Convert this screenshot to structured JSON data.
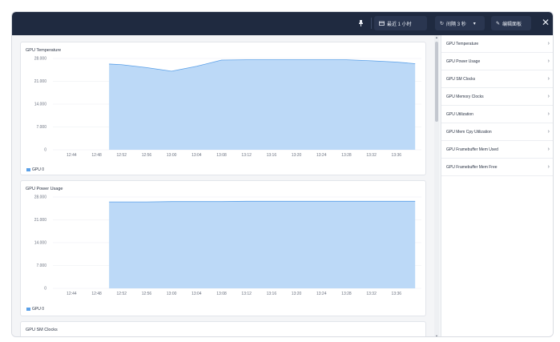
{
  "toolbar": {
    "pin_icon": "pin-icon",
    "time_range": "最近 1 小时",
    "refresh": "间隔 3 秒",
    "edit_label": "编辑面板"
  },
  "panels": [
    {
      "title": "GPU Temperature",
      "legend": "GPU 0"
    },
    {
      "title": "GPU Power Usage",
      "legend": "GPU 0"
    },
    {
      "title": "GPU SM Clocks"
    }
  ],
  "sidebar": {
    "items": [
      {
        "label": "GPU Temperature"
      },
      {
        "label": "GPU Power Usage"
      },
      {
        "label": "GPU SM Clocks"
      },
      {
        "label": "GPU Memory Clocks"
      },
      {
        "label": "GPU Utilization"
      },
      {
        "label": "GPU Mem Cpy Utilization"
      },
      {
        "label": "GPU Framebuffer Mem Used"
      },
      {
        "label": "GPU Framebuffer Mem Free"
      }
    ]
  },
  "colors": {
    "topbar": "#1f2a40",
    "series_fill": "#bcd9f7",
    "series_line": "#5aa0e8"
  },
  "chart_data": [
    {
      "type": "area",
      "title": "GPU Temperature",
      "x": [
        "12:50",
        "12:52",
        "12:56",
        "13:00",
        "13:04",
        "13:08",
        "13:12",
        "13:16",
        "13:20",
        "13:24",
        "13:28",
        "13:32",
        "13:36",
        "13:39"
      ],
      "x_tick_labels": [
        "12:44",
        "12:48",
        "12:52",
        "12:56",
        "13:00",
        "13:04",
        "13:08",
        "13:12",
        "13:16",
        "13:20",
        "13:24",
        "13:28",
        "13:32",
        "13:36"
      ],
      "y_tick_labels": [
        "0",
        "7.000",
        "14.000",
        "21.000",
        "28.000"
      ],
      "series": [
        {
          "name": "GPU 0",
          "values": [
            26300,
            26100,
            25200,
            24100,
            25600,
            27500,
            27600,
            27600,
            27600,
            27600,
            27600,
            27300,
            26900,
            26400
          ]
        }
      ],
      "ylim": [
        0,
        28000
      ],
      "xlim": [
        "12:41",
        "13:40"
      ],
      "grid": true,
      "legend": "bottom-left"
    },
    {
      "type": "area",
      "title": "GPU Power Usage",
      "x": [
        "12:50",
        "12:52",
        "12:56",
        "13:00",
        "13:04",
        "13:08",
        "13:12",
        "13:16",
        "13:20",
        "13:24",
        "13:28",
        "13:32",
        "13:36",
        "13:39"
      ],
      "x_tick_labels": [
        "12:44",
        "12:48",
        "12:52",
        "12:56",
        "13:00",
        "13:04",
        "13:08",
        "13:12",
        "13:16",
        "13:20",
        "13:24",
        "13:28",
        "13:32",
        "13:36"
      ],
      "y_tick_labels": [
        "0",
        "7.000",
        "14.000",
        "21.000",
        "28.000"
      ],
      "series": [
        {
          "name": "GPU 0",
          "values": [
            26500,
            26500,
            26500,
            26600,
            26600,
            26600,
            26700,
            26700,
            26700,
            26700,
            26700,
            26700,
            26700,
            26700
          ]
        }
      ],
      "ylim": [
        0,
        28000
      ],
      "xlim": [
        "12:41",
        "13:40"
      ],
      "grid": true,
      "legend": "bottom-left"
    }
  ]
}
